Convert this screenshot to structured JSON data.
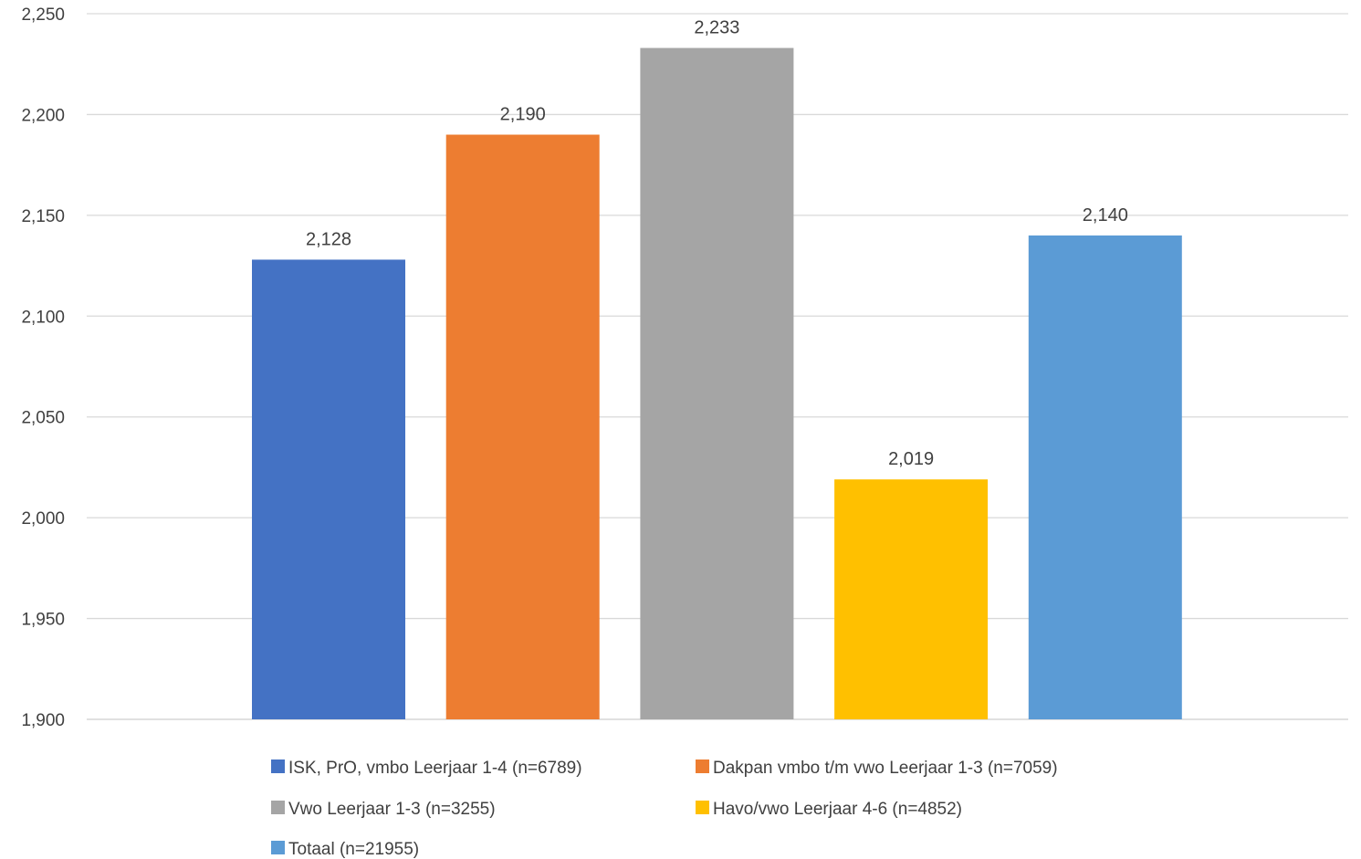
{
  "chart_data": {
    "type": "bar",
    "title": "",
    "xlabel": "",
    "ylabel": "",
    "ylim": [
      1.9,
      2.25
    ],
    "yticks": [
      "1,900",
      "1,950",
      "2,000",
      "2,050",
      "2,100",
      "2,150",
      "2,200",
      "2,250"
    ],
    "yticks_values": [
      1.9,
      1.95,
      2.0,
      2.05,
      2.1,
      2.15,
      2.2,
      2.25
    ],
    "grid": true,
    "legend_position": "bottom",
    "series": [
      {
        "name": "ISK, PrO, vmbo Leerjaar 1-4 (n=6789)",
        "value": 2.128,
        "label": "2,128",
        "color": "#4472C4"
      },
      {
        "name": "Dakpan vmbo t/m vwo Leerjaar 1-3 (n=7059)",
        "value": 2.19,
        "label": "2,190",
        "color": "#ED7D31"
      },
      {
        "name": "Vwo Leerjaar 1-3 (n=3255)",
        "value": 2.233,
        "label": "2,233",
        "color": "#A5A5A5"
      },
      {
        "name": "Havo/vwo Leerjaar 4-6 (n=4852)",
        "value": 2.019,
        "label": "2,019",
        "color": "#FFC000"
      },
      {
        "name": "Totaal (n=21955)",
        "value": 2.14,
        "label": "2,140",
        "color": "#5B9BD5"
      }
    ]
  }
}
